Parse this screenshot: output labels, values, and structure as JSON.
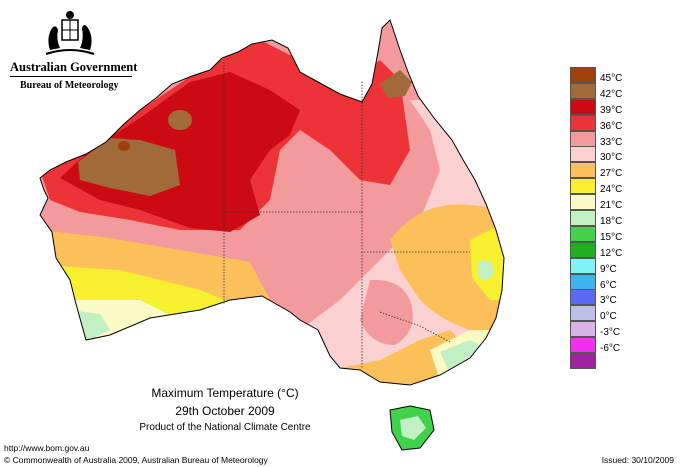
{
  "header": {
    "government": "Australian Government",
    "bureau": "Bureau of Meteorology"
  },
  "legend": [
    {
      "label": "45°C",
      "color": "#a0400a"
    },
    {
      "label": "42°C",
      "color": "#a06a3a"
    },
    {
      "label": "39°C",
      "color": "#cc0a12"
    },
    {
      "label": "36°C",
      "color": "#ee3338"
    },
    {
      "label": "33°C",
      "color": "#f29a9c"
    },
    {
      "label": "30°C",
      "color": "#fbd0d0"
    },
    {
      "label": "27°C",
      "color": "#fbc05a"
    },
    {
      "label": "24°C",
      "color": "#f6f02e"
    },
    {
      "label": "21°C",
      "color": "#fafac4"
    },
    {
      "label": "18°C",
      "color": "#c2f0c2"
    },
    {
      "label": "15°C",
      "color": "#40d24a"
    },
    {
      "label": "12°C",
      "color": "#1fb01f"
    },
    {
      "label": "9°C",
      "color": "#7ef4f4"
    },
    {
      "label": "6°C",
      "color": "#3cb4f0"
    },
    {
      "label": "3°C",
      "color": "#5a6af0"
    },
    {
      "label": "0°C",
      "color": "#bebee6"
    },
    {
      "label": "-3°C",
      "color": "#d6b4e8"
    },
    {
      "label": "-6°C",
      "color": "#f030f0"
    },
    {
      "label": "",
      "color": "#a020a0"
    }
  ],
  "caption": {
    "title": "Maximum Temperature (°C)",
    "date": "29th October 2009",
    "product": "Product of the National Climate Centre"
  },
  "footer": {
    "url": "http://www.bom.gov.au",
    "copyright": "© Commonwealth of Australia 2009, Australian Bureau of Meteorology",
    "issued": "Issued: 30/10/2009"
  }
}
